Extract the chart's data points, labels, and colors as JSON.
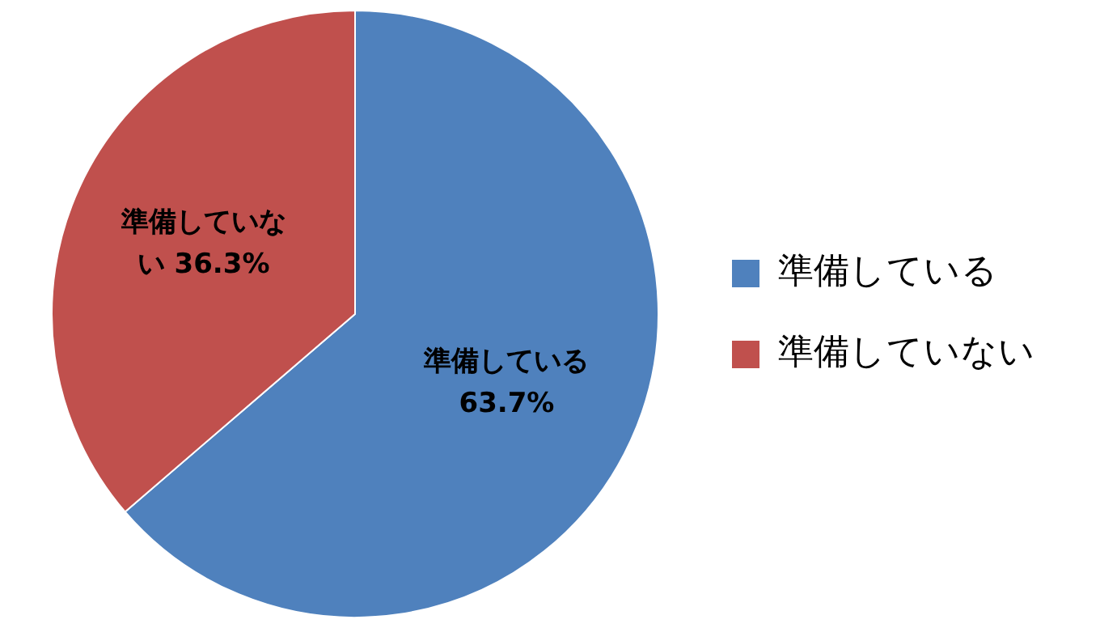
{
  "chart_data": {
    "type": "pie",
    "categories": [
      "準備している",
      "準備していない"
    ],
    "values": [
      63.7,
      36.3
    ],
    "colors": [
      "#4f81bd",
      "#c0504d"
    ],
    "value_labels": [
      "63.7%",
      "36.3%"
    ],
    "legend": "right"
  }
}
